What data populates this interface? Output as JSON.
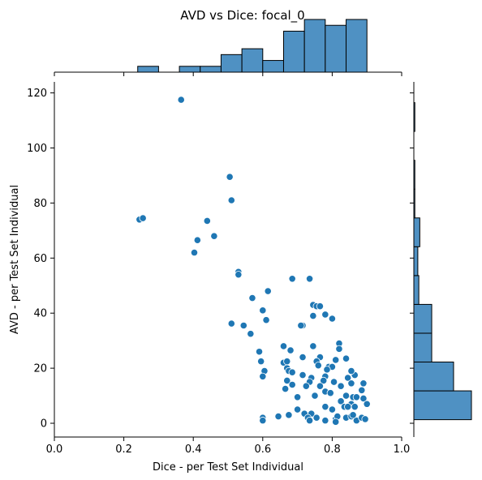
{
  "chart_data": {
    "type": "scatter",
    "title": "AVD vs Dice: focal_0",
    "xlabel": "Dice - per Test Set Individual",
    "ylabel": "AVD - per Test Set Individual",
    "xlim": [
      0.0,
      1.0
    ],
    "ylim": [
      -5,
      124
    ],
    "xticks": [
      "0.0",
      "0.2",
      "0.4",
      "0.6",
      "0.8",
      "1.0"
    ],
    "yticks": [
      "0",
      "20",
      "40",
      "60",
      "80",
      "100",
      "120"
    ],
    "grid": false,
    "colors": {
      "point": "#1f77b4",
      "bar_fill": "#4f91c3",
      "edge": "#000000"
    },
    "points": [
      {
        "x": 0.365,
        "y": 117.5
      },
      {
        "x": 0.505,
        "y": 89.5
      },
      {
        "x": 0.51,
        "y": 81
      },
      {
        "x": 0.245,
        "y": 74
      },
      {
        "x": 0.255,
        "y": 74.5
      },
      {
        "x": 0.44,
        "y": 73.5
      },
      {
        "x": 0.46,
        "y": 68
      },
      {
        "x": 0.412,
        "y": 66.5
      },
      {
        "x": 0.403,
        "y": 62
      },
      {
        "x": 0.53,
        "y": 55
      },
      {
        "x": 0.53,
        "y": 54
      },
      {
        "x": 0.685,
        "y": 52.5
      },
      {
        "x": 0.735,
        "y": 52.5
      },
      {
        "x": 0.615,
        "y": 48
      },
      {
        "x": 0.57,
        "y": 45.5
      },
      {
        "x": 0.745,
        "y": 43
      },
      {
        "x": 0.755,
        "y": 42.5
      },
      {
        "x": 0.765,
        "y": 42.5
      },
      {
        "x": 0.6,
        "y": 41
      },
      {
        "x": 0.78,
        "y": 39.5
      },
      {
        "x": 0.745,
        "y": 39
      },
      {
        "x": 0.8,
        "y": 38
      },
      {
        "x": 0.61,
        "y": 37.5
      },
      {
        "x": 0.51,
        "y": 36.2
      },
      {
        "x": 0.545,
        "y": 35.5
      },
      {
        "x": 0.715,
        "y": 35.5
      },
      {
        "x": 0.71,
        "y": 35.5
      },
      {
        "x": 0.565,
        "y": 32.5
      },
      {
        "x": 0.82,
        "y": 29
      },
      {
        "x": 0.82,
        "y": 27
      },
      {
        "x": 0.745,
        "y": 28
      },
      {
        "x": 0.66,
        "y": 28
      },
      {
        "x": 0.68,
        "y": 26.5
      },
      {
        "x": 0.59,
        "y": 26
      },
      {
        "x": 0.84,
        "y": 23.5
      },
      {
        "x": 0.81,
        "y": 23
      },
      {
        "x": 0.765,
        "y": 24
      },
      {
        "x": 0.715,
        "y": 24
      },
      {
        "x": 0.595,
        "y": 22.5
      },
      {
        "x": 0.66,
        "y": 22
      },
      {
        "x": 0.67,
        "y": 22.5
      },
      {
        "x": 0.755,
        "y": 22.5
      },
      {
        "x": 0.76,
        "y": 21
      },
      {
        "x": 0.79,
        "y": 20.5
      },
      {
        "x": 0.8,
        "y": 20.5
      },
      {
        "x": 0.785,
        "y": 19.5
      },
      {
        "x": 0.67,
        "y": 20
      },
      {
        "x": 0.675,
        "y": 19
      },
      {
        "x": 0.685,
        "y": 18.5
      },
      {
        "x": 0.605,
        "y": 19
      },
      {
        "x": 0.6,
        "y": 17
      },
      {
        "x": 0.715,
        "y": 17.5
      },
      {
        "x": 0.78,
        "y": 17
      },
      {
        "x": 0.775,
        "y": 15.5
      },
      {
        "x": 0.805,
        "y": 15
      },
      {
        "x": 0.845,
        "y": 16.5
      },
      {
        "x": 0.865,
        "y": 17.5
      },
      {
        "x": 0.855,
        "y": 19
      },
      {
        "x": 0.74,
        "y": 16.5
      },
      {
        "x": 0.735,
        "y": 15
      },
      {
        "x": 0.67,
        "y": 15.5
      },
      {
        "x": 0.685,
        "y": 14
      },
      {
        "x": 0.725,
        "y": 13.5
      },
      {
        "x": 0.765,
        "y": 13.5
      },
      {
        "x": 0.825,
        "y": 13.5
      },
      {
        "x": 0.855,
        "y": 14.5
      },
      {
        "x": 0.89,
        "y": 14.5
      },
      {
        "x": 0.885,
        "y": 12
      },
      {
        "x": 0.665,
        "y": 12.5
      },
      {
        "x": 0.78,
        "y": 11.5
      },
      {
        "x": 0.795,
        "y": 11
      },
      {
        "x": 0.75,
        "y": 10
      },
      {
        "x": 0.84,
        "y": 10
      },
      {
        "x": 0.86,
        "y": 9.5
      },
      {
        "x": 0.87,
        "y": 9.5
      },
      {
        "x": 0.7,
        "y": 9.5
      },
      {
        "x": 0.89,
        "y": 9
      },
      {
        "x": 0.825,
        "y": 8
      },
      {
        "x": 0.855,
        "y": 7
      },
      {
        "x": 0.9,
        "y": 7
      },
      {
        "x": 0.865,
        "y": 6
      },
      {
        "x": 0.835,
        "y": 6
      },
      {
        "x": 0.845,
        "y": 6
      },
      {
        "x": 0.78,
        "y": 6
      },
      {
        "x": 0.8,
        "y": 5
      },
      {
        "x": 0.7,
        "y": 5
      },
      {
        "x": 0.675,
        "y": 3
      },
      {
        "x": 0.72,
        "y": 3.5
      },
      {
        "x": 0.74,
        "y": 3.5
      },
      {
        "x": 0.645,
        "y": 2.5
      },
      {
        "x": 0.6,
        "y": 2
      },
      {
        "x": 0.6,
        "y": 1
      },
      {
        "x": 0.73,
        "y": 2
      },
      {
        "x": 0.735,
        "y": 1
      },
      {
        "x": 0.755,
        "y": 2
      },
      {
        "x": 0.78,
        "y": 1
      },
      {
        "x": 0.81,
        "y": 1.5
      },
      {
        "x": 0.815,
        "y": 2.5
      },
      {
        "x": 0.84,
        "y": 2
      },
      {
        "x": 0.855,
        "y": 2.5
      },
      {
        "x": 0.87,
        "y": 1
      },
      {
        "x": 0.885,
        "y": 2
      },
      {
        "x": 0.895,
        "y": 1.5
      },
      {
        "x": 0.86,
        "y": 3
      },
      {
        "x": 0.81,
        "y": 0.5
      }
    ],
    "x_histogram": {
      "bin_edges": [
        0.24,
        0.3,
        0.36,
        0.42,
        0.48,
        0.54,
        0.6,
        0.66,
        0.72,
        0.78,
        0.84,
        0.9
      ],
      "heights": [
        1,
        0,
        1,
        1,
        3,
        4,
        2,
        7,
        9,
        8,
        9
      ]
    },
    "y_histogram": {
      "bin_edges": [
        1.3,
        11.77,
        22.24,
        32.71,
        43.18,
        53.65,
        64.12,
        74.59,
        85.06,
        95.53,
        106.0,
        116.47
      ],
      "widths": [
        58,
        40,
        18,
        18,
        5,
        4,
        6,
        1,
        1,
        0,
        1
      ]
    }
  }
}
